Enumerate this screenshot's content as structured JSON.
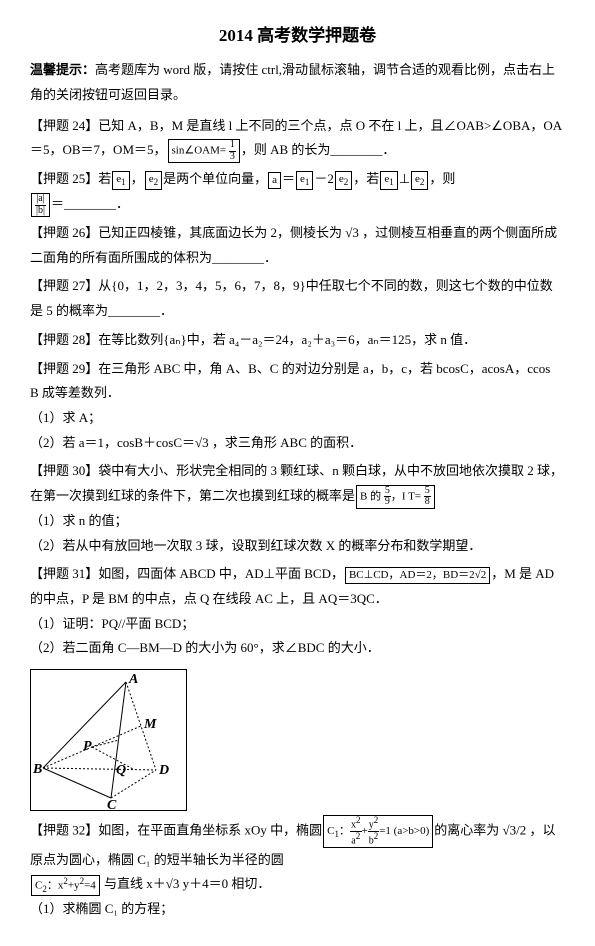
{
  "header": {
    "title": "2014 高考数学押题卷",
    "subtitle_label": "温馨提示：",
    "subtitle_text": "高考题库为 word 版，请按住 ctrl,滑动鼠标滚轴，调节合适的观看比例，点击右上角的关闭按钮可返回目录。"
  },
  "problems": {
    "p1": {
      "num": "【押题 24】",
      "text1": "已知 A，B，M 是直线 l 上不同的三个点，点 O 不在 l 上，且∠OAB>∠OBA，OA＝5，OB＝7，OM＝5，",
      "text2": "，则 AB 的长为________．",
      "formula": "sin∠OAM= <span class='frac'><span class='num'>1</span><span class='den'>3</span></span>"
    },
    "p2": {
      "num": "【押题 25】",
      "text1": "若",
      "e1": "e<sub>1</sub>",
      "text2": "，",
      "e2": "e<sub>2</sub>",
      "text3": "是两个单位向量，",
      "a": "a",
      "text4": "＝",
      "ae": "e<sub>1</sub>",
      "text5": "－2",
      "be": "e<sub>2</sub>",
      "text6": "，若",
      "ce1": "e<sub>1</sub>",
      "text7": "⊥",
      "ce2": "e<sub>2</sub>",
      "text8": "，则",
      "frac_top": "|a|",
      "frac_bot": "|b|",
      "text9": "＝________．"
    },
    "p3": {
      "num": "【押题 26】",
      "text": "已知正四棱锥，其底面边长为 2，侧棱长为 √3 ，过侧棱互相垂直的两个侧面所成二面角的所有面所围成的体积为________．"
    },
    "p4": {
      "num": "【押题 27】",
      "text": "从{0，1，2，3，4，5，6，7，8，9}中任取七个不同的数，则这七个数的中位数是 5 的概率为________．"
    },
    "p5": {
      "num": "【押题 28】",
      "text": "在等比数列{aₙ}中，若 a₄－a₂＝24，a₂＋a₃＝6，aₙ＝125，求 n 值．"
    },
    "p6": {
      "num": "【押题 29】",
      "text1": "在三角形 ABC 中，角 A、B、C 的对边分别是 a，b，c，若 bcosC，acosA，ccos",
      "text2": "B 成等差数列．",
      "sub1": "（1）求 A；",
      "sub2": "（2）若 a＝1，cosB＋cosC＝√3 ，求三角形 ABC 的面积．"
    },
    "p7": {
      "num": "【押题 30】",
      "text1": "袋中有大小、形状完全相同的 3 颗红球、n 颗白球，从中不放回地依次摸取 2 球，在第一次摸到红球的条件下，第二次也摸到红球的概率是",
      "frac1": "B 的 <span class='frac'><span class='num'>5</span><span class='den'>9</span></span>，I T= <span class='frac'><span class='num'>5</span><span class='den'>8</span></span>",
      "sub1": "（1）求 n 的值；",
      "sub2": "（2）若从中有放回地一次取 3 球，设取到红球次数 X 的概率分布和数学期望．"
    },
    "p8": {
      "num": "【押题 31】",
      "text1": "如图，四面体 ABCD 中，AD⊥平面 BCD，",
      "cond": "BC⊥CD，AD＝2，BD＝2√2",
      "text2": "，M 是 AD 的中点，P 是 BM 的中点，点 Q 在线段 AC 上，且 AQ＝3QC．",
      "sub1": "（1）证明：PQ//平面 BCD；",
      "sub2": "（2）若二面角 C—BM—D 的大小为 60°，求∠BDC 的大小．"
    },
    "p9": {
      "num": "【押题 32】",
      "text1": "如图，在平面直角坐标系 xOy 中，椭圆",
      "c1": "C<sub>1</sub>：<span class='frac'><span class='num'>x<sup>2</sup></span><span class='den'>a<sup>2</sup></span></span>+<span class='frac'><span class='num'>y<sup>2</sup></span><span class='den'>b<sup>2</sup></span></span>=1 (a&gt;b&gt;0)",
      "text2": "的离心率为 √3/2 ，以原点为圆心，椭圆 C₁ 的短半轴长为半径的圆",
      "c2": "C<sub>2</sub>：x<sup>2</sup>+y<sup>2</sup>=4",
      "text3": " 与直线 x＋√3 y＋4＝0 相切．",
      "sub1": "（1）求椭圆 C₁ 的方程；"
    }
  },
  "figure": {
    "labels": {
      "A": "A",
      "M": "M",
      "P": "P",
      "Q": "Q",
      "B": "B",
      "D": "D",
      "C": "C"
    }
  }
}
